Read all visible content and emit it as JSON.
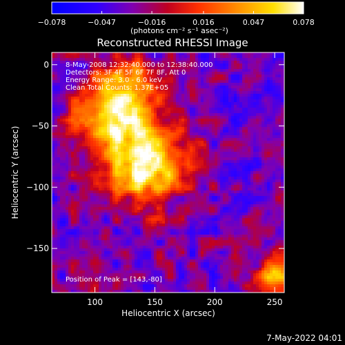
{
  "chart_data": {
    "type": "heatmap",
    "title": "Reconstructed RHESSI Image",
    "xlabel": "Heliocentric X (arcsec)",
    "ylabel": "Heliocentric Y (arcsec)",
    "xlim": [
      64,
      258
    ],
    "ylim": [
      -186,
      10
    ],
    "xticks": [
      100,
      150,
      200,
      250
    ],
    "yticks": [
      0,
      -50,
      -100,
      -150
    ],
    "colorbar": {
      "label": "(photons cm⁻² s⁻¹ asec⁻²)",
      "range": [
        -0.078,
        0.078
      ],
      "tick_labels": [
        "−0.078",
        "−0.047",
        "−0.016",
        "0.016",
        "0.047",
        "0.078"
      ],
      "tick_values": [
        -0.078,
        -0.047,
        -0.016,
        0.016,
        0.047,
        0.078
      ],
      "colormap": [
        "#0000ff",
        "#8000b0",
        "#d00000",
        "#ff6000",
        "#ffd000",
        "#ffffff"
      ]
    },
    "annotations": [
      "8-May-2008 12:32:40.000 to 12:38:40.000",
      "Detectors: 3F 4F 5F 6F 7F 8F, Att 0",
      "Energy Range: 3.0 - 6.0 keV",
      "Clean    Total Counts: 1.37E+05"
    ],
    "peak_label": "Position of Peak = [143,-80]",
    "peak_position": [
      143,
      -80
    ],
    "sources": [
      {
        "x": 143,
        "y": -80,
        "peak": 0.078,
        "sigma": 22
      },
      {
        "x": 110,
        "y": -45,
        "peak": 0.05,
        "sigma": 20
      },
      {
        "x": 128,
        "y": -20,
        "peak": 0.04,
        "sigma": 18
      },
      {
        "x": 250,
        "y": -175,
        "peak": 0.045,
        "sigma": 12
      }
    ]
  },
  "stamp": "7-May-2022 04:01"
}
